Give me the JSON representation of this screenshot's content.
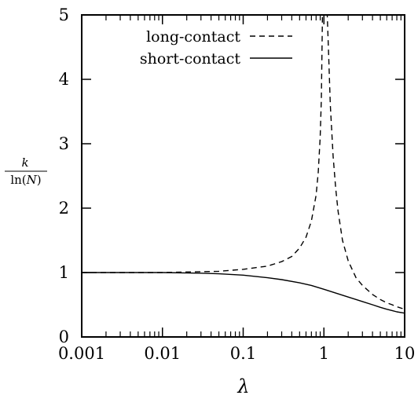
{
  "chart_data": {
    "type": "line",
    "title": "",
    "xlabel": "λ",
    "ylabel": {
      "numerator": "k",
      "denominator_prefix": "ln(",
      "denominator_var": "N",
      "denominator_suffix": ")"
    },
    "xscale": "log",
    "xlim": [
      0.001,
      10
    ],
    "ylim": [
      0,
      5
    ],
    "xticks": [
      {
        "value": 0.001,
        "label": "0.001"
      },
      {
        "value": 0.01,
        "label": "0.01"
      },
      {
        "value": 0.1,
        "label": "0.1"
      },
      {
        "value": 1,
        "label": "1"
      },
      {
        "value": 10,
        "label": "10"
      }
    ],
    "yticks": [
      {
        "value": 0,
        "label": "0"
      },
      {
        "value": 1,
        "label": "1"
      },
      {
        "value": 2,
        "label": "2"
      },
      {
        "value": 3,
        "label": "3"
      },
      {
        "value": 4,
        "label": "4"
      },
      {
        "value": 5,
        "label": "5"
      }
    ],
    "grid": false,
    "legend_position": "top-right",
    "series": [
      {
        "name": "long-contact",
        "style": "dashed",
        "color": "#000000",
        "x": [
          0.001,
          0.01,
          0.05,
          0.1,
          0.2,
          0.3,
          0.4,
          0.5,
          0.6,
          0.7,
          0.8,
          0.85,
          0.9,
          0.93,
          0.96,
          1.1,
          1.15,
          1.2,
          1.3,
          1.4,
          1.5,
          1.7,
          2,
          2.5,
          3,
          4,
          5,
          6,
          7,
          8,
          10
        ],
        "y": [
          1.0,
          1.0,
          1.02,
          1.05,
          1.1,
          1.17,
          1.25,
          1.38,
          1.55,
          1.8,
          2.2,
          2.55,
          3.1,
          3.7,
          5.0,
          5.0,
          4.3,
          3.6,
          2.8,
          2.3,
          1.95,
          1.5,
          1.18,
          0.92,
          0.8,
          0.66,
          0.58,
          0.53,
          0.5,
          0.47,
          0.43
        ]
      },
      {
        "name": "short-contact",
        "style": "solid",
        "color": "#000000",
        "x": [
          0.001,
          0.003,
          0.01,
          0.03,
          0.05,
          0.1,
          0.2,
          0.3,
          0.5,
          0.7,
          1,
          1.5,
          2,
          3,
          4,
          5,
          6,
          7,
          8,
          10
        ],
        "y": [
          1.0,
          1.0,
          1.0,
          0.99,
          0.98,
          0.96,
          0.92,
          0.89,
          0.84,
          0.8,
          0.74,
          0.67,
          0.62,
          0.55,
          0.5,
          0.46,
          0.43,
          0.41,
          0.39,
          0.37
        ]
      }
    ]
  }
}
